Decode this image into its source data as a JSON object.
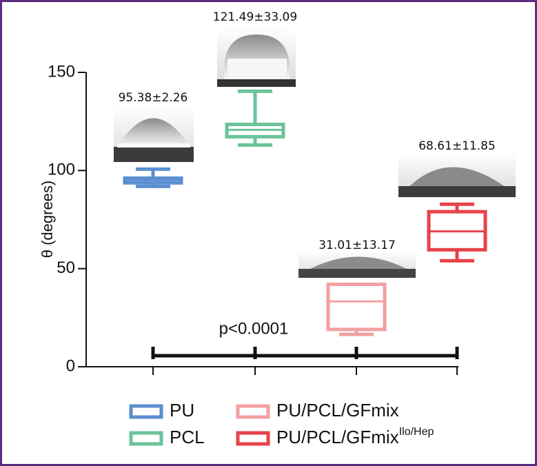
{
  "chart_data": {
    "type": "box",
    "ylabel": "θ (degrees)",
    "ylim": [
      0,
      150
    ],
    "yticks": [
      0,
      50,
      100,
      150
    ],
    "series": [
      {
        "name": "PU",
        "color": "#5b8fd1",
        "min": 91.9,
        "q1": 93.7,
        "median": 95.1,
        "q3": 96.1,
        "max": 100.7,
        "annotation": "95.38±2.26"
      },
      {
        "name": "PCL",
        "color": "#6cc39b",
        "min": 113,
        "q1": 117.2,
        "median": 120.7,
        "q3": 123.5,
        "max": 140.4,
        "annotation": "121.49±33.09"
      },
      {
        "name": "PU/PCL/GFmix",
        "color": "#f2a0a2",
        "min": 16.5,
        "q1": 19,
        "median": 33.3,
        "q3": 42,
        "max": 42,
        "annotation": "31.01±13.17"
      },
      {
        "name": "PU/PCL/GFmix",
        "superscript": "Ilo/Hep",
        "color": "#e8424a",
        "min": 54,
        "q1": 59.6,
        "median": 69,
        "q3": 79,
        "max": 82.8,
        "annotation": "68.61±11.85"
      }
    ],
    "significance": "p<0.0001"
  }
}
